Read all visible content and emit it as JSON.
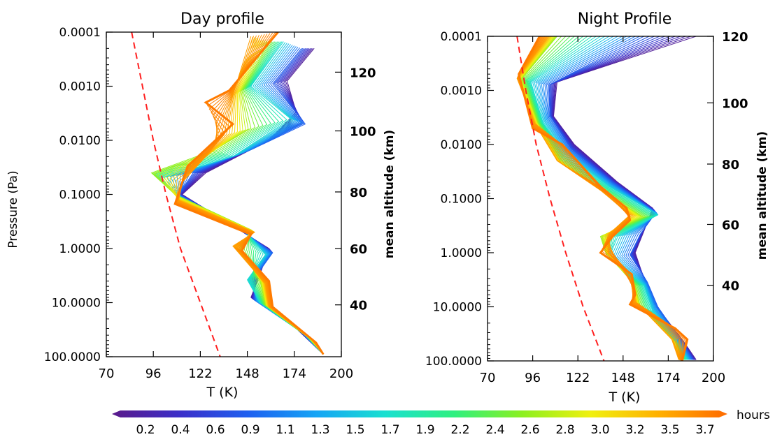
{
  "chart_data": [
    {
      "type": "line",
      "title": "Day profile",
      "xlabel": "T (K)",
      "ylabel": "Pressure (Pa)",
      "y2label": "mean altitude (km)",
      "xlim": [
        70,
        200
      ],
      "ylim": [
        100,
        0.0001
      ],
      "yscale": "log",
      "xticks": [
        "70",
        "96",
        "122",
        "148",
        "174",
        "200"
      ],
      "yticks": [
        "0.0001",
        "0.0010",
        "0.0100",
        "0.1000",
        "1.0000",
        "10.0000",
        "100.0000"
      ],
      "y2ticks": [
        "120",
        "100",
        "80",
        "60",
        "40"
      ],
      "y2tick_pressures": [
        0.00055,
        0.0067,
        0.09,
        1.0,
        11.0
      ],
      "grid": false,
      "reference_line": {
        "style": "dashed",
        "color": "#ff2020",
        "points": [
          [
            84,
            0.0001
          ],
          [
            90,
            0.001
          ],
          [
            96,
            0.01
          ],
          [
            103,
            0.1
          ],
          [
            111,
            1
          ],
          [
            122,
            10
          ],
          [
            133,
            100
          ]
        ]
      },
      "profiles": [
        {
          "hours": 0.2,
          "points": [
            [
              185,
              0.0002
            ],
            [
              170,
              0.0008
            ],
            [
              175,
              0.003
            ],
            [
              160,
              0.01
            ],
            [
              125,
              0.04
            ],
            [
              112,
              0.1
            ],
            [
              135,
              0.3
            ],
            [
              160,
              1.0
            ],
            [
              155,
              3
            ],
            [
              150,
              8
            ],
            [
              175,
              30
            ],
            [
              190,
              90
            ]
          ]
        },
        {
          "hours": 0.9,
          "points": [
            [
              178,
              0.0002
            ],
            [
              162,
              0.0009
            ],
            [
              180,
              0.005
            ],
            [
              150,
              0.015
            ],
            [
              118,
              0.04
            ],
            [
              110,
              0.1
            ],
            [
              140,
              0.35
            ],
            [
              162,
              1.2
            ],
            [
              152,
              3.5
            ],
            [
              152,
              9
            ],
            [
              178,
              35
            ],
            [
              190,
              90
            ]
          ]
        },
        {
          "hours": 1.7,
          "points": [
            [
              168,
              0.00015
            ],
            [
              150,
              0.001
            ],
            [
              172,
              0.004
            ],
            [
              140,
              0.02
            ],
            [
              100,
              0.05
            ],
            [
              112,
              0.12
            ],
            [
              145,
              0.4
            ],
            [
              158,
              1.3
            ],
            [
              148,
              3.8
            ],
            [
              155,
              10
            ],
            [
              180,
              40
            ],
            [
              190,
              90
            ]
          ]
        },
        {
          "hours": 2.6,
          "points": [
            [
              160,
              0.00015
            ],
            [
              145,
              0.0012
            ],
            [
              150,
              0.006
            ],
            [
              130,
              0.015
            ],
            [
              95,
              0.04
            ],
            [
              108,
              0.1
            ],
            [
              150,
              0.45
            ],
            [
              145,
              1.0
            ],
            [
              155,
              4
            ],
            [
              158,
              11
            ],
            [
              182,
              45
            ],
            [
              190,
              90
            ]
          ]
        },
        {
          "hours": 3.5,
          "points": [
            [
              150,
              0.00012
            ],
            [
              140,
              0.0015
            ],
            [
              135,
              0.008
            ],
            [
              125,
              0.02
            ],
            [
              112,
              0.06
            ],
            [
              110,
              0.13
            ],
            [
              152,
              0.5
            ],
            [
              140,
              0.9
            ],
            [
              158,
              4.5
            ],
            [
              160,
              12
            ],
            [
              184,
              50
            ],
            [
              190,
              90
            ]
          ]
        },
        {
          "hours": 3.7,
          "points": [
            [
              165,
              0.0001
            ],
            [
              138,
              0.0012
            ],
            [
              125,
              0.002
            ],
            [
              140,
              0.005
            ],
            [
              115,
              0.03
            ],
            [
              108,
              0.15
            ],
            [
              150,
              0.55
            ],
            [
              145,
              1.1
            ],
            [
              160,
              4
            ],
            [
              162,
              12
            ],
            [
              186,
              55
            ],
            [
              190,
              90
            ]
          ]
        }
      ]
    },
    {
      "type": "line",
      "title": "Night Profile",
      "xlabel": "T (K)",
      "ylabel": "Pressure (Pa)",
      "y2label": "mean altitude (km)",
      "xlim": [
        70,
        200
      ],
      "ylim": [
        100,
        0.0001
      ],
      "yscale": "log",
      "xticks": [
        "70",
        "96",
        "122",
        "148",
        "174",
        "200"
      ],
      "yticks": [
        "0.0001",
        "0.0010",
        "0.0100",
        "0.1000",
        "1.0000",
        "10.0000",
        "100.0000"
      ],
      "y2ticks": [
        "120",
        "100",
        "80",
        "60",
        "40"
      ],
      "y2tick_pressures": [
        0.0001,
        0.0017,
        0.023,
        0.3,
        4.0
      ],
      "grid": false,
      "reference_line": {
        "style": "dashed",
        "color": "#ff2020",
        "points": [
          [
            87,
            0.0001
          ],
          [
            92,
            0.001
          ],
          [
            98,
            0.01
          ],
          [
            106,
            0.1
          ],
          [
            115,
            1
          ],
          [
            125,
            10
          ],
          [
            137,
            100
          ]
        ]
      },
      "profiles": [
        {
          "hours": 0.2,
          "points": [
            [
              190,
              0.0001
            ],
            [
              110,
              0.0007
            ],
            [
              108,
              0.003
            ],
            [
              120,
              0.01
            ],
            [
              145,
              0.05
            ],
            [
              165,
              0.15
            ],
            [
              160,
              0.4
            ],
            [
              155,
              1.0
            ],
            [
              160,
              3
            ],
            [
              165,
              8
            ],
            [
              182,
              40
            ],
            [
              190,
              95
            ]
          ]
        },
        {
          "hours": 0.9,
          "points": [
            [
              160,
              0.0001
            ],
            [
              105,
              0.0008
            ],
            [
              106,
              0.003
            ],
            [
              118,
              0.012
            ],
            [
              142,
              0.05
            ],
            [
              167,
              0.18
            ],
            [
              158,
              0.45
            ],
            [
              152,
              1.1
            ],
            [
              162,
              3.5
            ],
            [
              168,
              10
            ],
            [
              182,
              45
            ],
            [
              188,
              95
            ]
          ]
        },
        {
          "hours": 1.7,
          "points": [
            [
              135,
              0.0001
            ],
            [
              95,
              0.0007
            ],
            [
              102,
              0.004
            ],
            [
              115,
              0.015
            ],
            [
              140,
              0.06
            ],
            [
              168,
              0.2
            ],
            [
              145,
              0.5
            ],
            [
              140,
              1.2
            ],
            [
              160,
              4
            ],
            [
              165,
              12
            ],
            [
              180,
              50
            ],
            [
              185,
              95
            ]
          ]
        },
        {
          "hours": 2.6,
          "points": [
            [
              110,
              0.0001
            ],
            [
              90,
              0.0006
            ],
            [
              99,
              0.004
            ],
            [
              112,
              0.02
            ],
            [
              138,
              0.08
            ],
            [
              160,
              0.22
            ],
            [
              135,
              0.5
            ],
            [
              138,
              1.0
            ],
            [
              155,
              4
            ],
            [
              158,
              10
            ],
            [
              178,
              45
            ],
            [
              182,
              95
            ]
          ]
        },
        {
          "hours": 3.5,
          "points": [
            [
              105,
              0.0001
            ],
            [
              87,
              0.0006
            ],
            [
              97,
              0.004
            ],
            [
              110,
              0.02
            ],
            [
              135,
              0.07
            ],
            [
              152,
              0.2
            ],
            [
              140,
              0.45
            ],
            [
              140,
              1.0
            ],
            [
              152,
              3
            ],
            [
              155,
              8
            ],
            [
              176,
              40
            ],
            [
              180,
              95
            ]
          ]
        },
        {
          "hours": 3.7,
          "points": [
            [
              100,
              0.0001
            ],
            [
              88,
              0.0005
            ],
            [
              96,
              0.005
            ],
            [
              113,
              0.01
            ],
            [
              135,
              0.06
            ],
            [
              150,
              0.15
            ],
            [
              152,
              0.25
            ],
            [
              142,
              0.5
            ],
            [
              135,
              1.0
            ],
            [
              153,
              2.5
            ],
            [
              155,
              6
            ],
            [
              152,
              9
            ],
            [
              178,
              25
            ],
            [
              185,
              40
            ],
            [
              182,
              100
            ]
          ]
        }
      ]
    }
  ],
  "colorbar": {
    "label": "hours",
    "ticks": [
      "0.2",
      "0.4",
      "0.6",
      "0.9",
      "1.1",
      "1.3",
      "1.5",
      "1.7",
      "1.9",
      "2.2",
      "2.4",
      "2.6",
      "2.8",
      "3.0",
      "3.2",
      "3.5",
      "3.7"
    ],
    "colors": [
      "#5a1a8a",
      "#3b2fc9",
      "#1e60f0",
      "#16a5f5",
      "#19e0d0",
      "#2ef080",
      "#8cf020",
      "#f0f010",
      "#ffb000",
      "#ff6a00"
    ]
  }
}
